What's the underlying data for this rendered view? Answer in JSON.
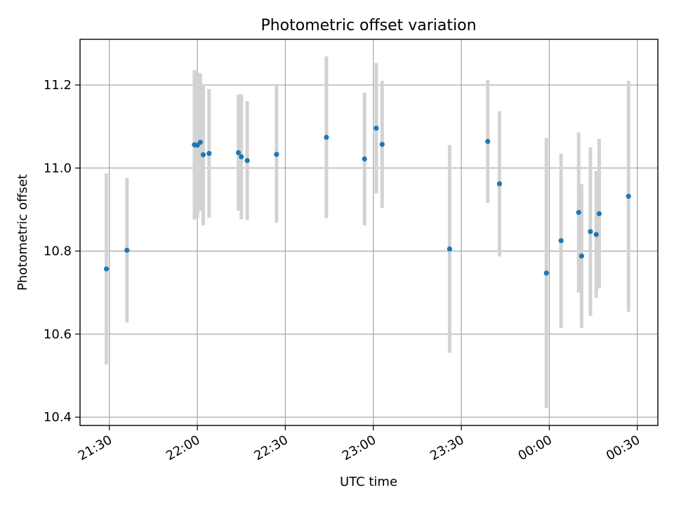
{
  "chart_data": {
    "type": "scatter",
    "title": "Photometric offset variation",
    "xlabel": "UTC time",
    "ylabel": "Photometric offset",
    "xlim": [
      "21:20",
      "00:37"
    ],
    "ylim": [
      10.38,
      11.31
    ],
    "grid": true,
    "x_ticks": [
      "21:30",
      "22:00",
      "22:30",
      "23:00",
      "23:30",
      "00:00",
      "00:30"
    ],
    "y_ticks": [
      "10.4",
      "10.6",
      "10.8",
      "11.0",
      "11.2"
    ],
    "y_tick_values": [
      10.4,
      10.6,
      10.8,
      11.0,
      11.2
    ],
    "colors": {
      "points": "#1f77b4",
      "errorbars": "#d3d3d3"
    },
    "series": [
      {
        "points": [
          {
            "x": "21:29",
            "y": 10.757,
            "err": 0.23
          },
          {
            "x": "21:36",
            "y": 10.802,
            "err": 0.174
          },
          {
            "x": "21:59",
            "y": 11.056,
            "err": 0.18
          },
          {
            "x": "22:00",
            "y": 11.055,
            "err": 0.175
          },
          {
            "x": "22:01",
            "y": 11.062,
            "err": 0.166
          },
          {
            "x": "22:02",
            "y": 11.032,
            "err": 0.17
          },
          {
            "x": "22:04",
            "y": 11.035,
            "err": 0.155
          },
          {
            "x": "22:14",
            "y": 11.037,
            "err": 0.14
          },
          {
            "x": "22:15",
            "y": 11.027,
            "err": 0.15
          },
          {
            "x": "22:17",
            "y": 11.018,
            "err": 0.143
          },
          {
            "x": "22:27",
            "y": 11.033,
            "err": 0.165
          },
          {
            "x": "22:44",
            "y": 11.074,
            "err": 0.195
          },
          {
            "x": "22:57",
            "y": 11.022,
            "err": 0.16
          },
          {
            "x": "23:01",
            "y": 11.096,
            "err": 0.157
          },
          {
            "x": "23:03",
            "y": 11.057,
            "err": 0.153
          },
          {
            "x": "23:26",
            "y": 10.805,
            "err": 0.25
          },
          {
            "x": "23:39",
            "y": 11.064,
            "err": 0.148
          },
          {
            "x": "23:43",
            "y": 10.962,
            "err": 0.175
          },
          {
            "x": "23:59",
            "y": 10.747,
            "err": 0.325
          },
          {
            "x": "00:04",
            "y": 10.825,
            "err": 0.21
          },
          {
            "x": "00:10",
            "y": 10.893,
            "err": 0.193
          },
          {
            "x": "00:11",
            "y": 10.788,
            "err": 0.173
          },
          {
            "x": "00:14",
            "y": 10.847,
            "err": 0.203
          },
          {
            "x": "00:16",
            "y": 10.84,
            "err": 0.153
          },
          {
            "x": "00:17",
            "y": 10.89,
            "err": 0.18
          },
          {
            "x": "00:27",
            "y": 10.932,
            "err": 0.278
          }
        ]
      }
    ]
  }
}
